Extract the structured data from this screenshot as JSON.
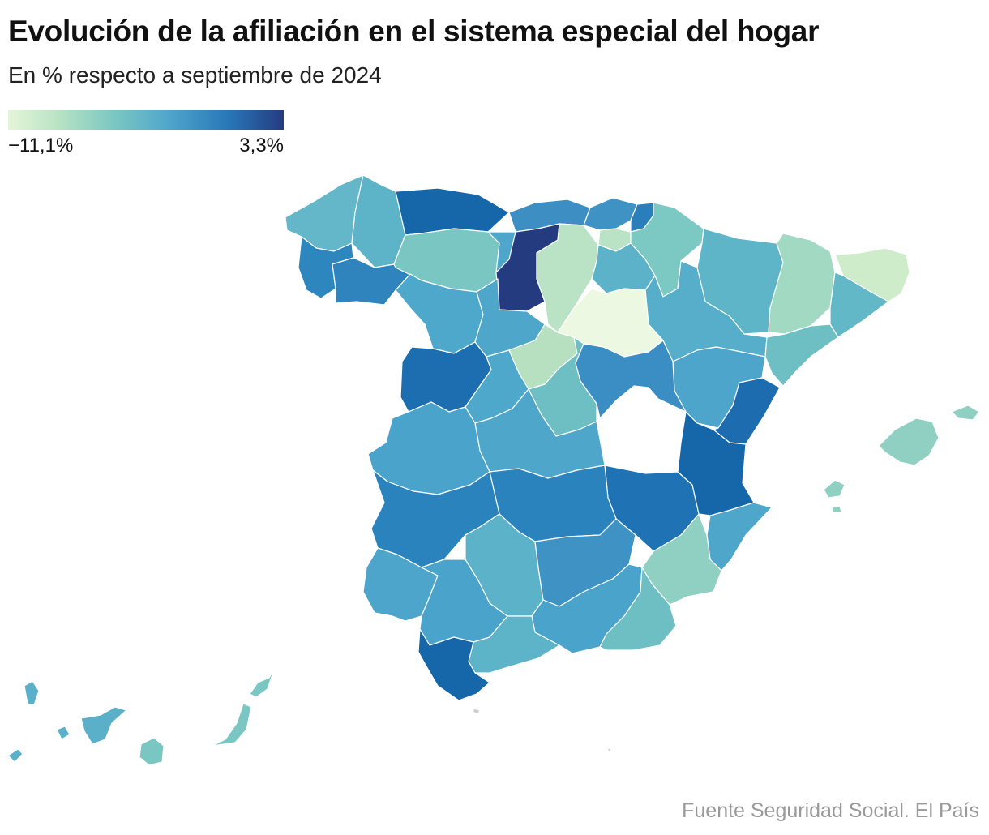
{
  "title": "Evolución de la afiliación en el sistema especial del hogar",
  "subtitle": "En % respecto a septiembre de 2024",
  "legend": {
    "min_label": "−11,1%",
    "max_label": "3,3%",
    "colors": [
      "#e6f5d8",
      "#b9e3c4",
      "#7cc8c2",
      "#4fa6cb",
      "#2877b8",
      "#253b80"
    ]
  },
  "source": "Fuente Seguridad Social. El País",
  "map": {
    "type": "choropleth",
    "region": "Spain provinces",
    "provinces": [
      {
        "id": "lugo",
        "color": "#5db4c8"
      },
      {
        "id": "a-coruna",
        "color": "#63b7c9"
      },
      {
        "id": "pontevedra",
        "color": "#2e86bf"
      },
      {
        "id": "ourense",
        "color": "#2f84be"
      },
      {
        "id": "asturias",
        "color": "#1666aa"
      },
      {
        "id": "leon",
        "color": "#79c6c3"
      },
      {
        "id": "zamora",
        "color": "#4da8cb"
      },
      {
        "id": "cantabria",
        "color": "#3d8fc3"
      },
      {
        "id": "burgos",
        "color": "#253b80"
      },
      {
        "id": "palencia",
        "color": "#4fa6cb"
      },
      {
        "id": "valladolid",
        "color": "#4fa6cb"
      },
      {
        "id": "salamanca",
        "color": "#1c6eb0"
      },
      {
        "id": "segovia",
        "color": "#b6e0c0"
      },
      {
        "id": "avila",
        "color": "#4da8cb"
      },
      {
        "id": "soria",
        "color": "#b9e3c4"
      },
      {
        "id": "bizkaia",
        "color": "#3f92c4"
      },
      {
        "id": "gipuzkoa",
        "color": "#2a7ebc"
      },
      {
        "id": "alava",
        "color": "#b9e3c4"
      },
      {
        "id": "la-rioja",
        "color": "#5cb2c8"
      },
      {
        "id": "navarra",
        "color": "#7cc8c2"
      },
      {
        "id": "huesca",
        "color": "#5fb5c8"
      },
      {
        "id": "zaragoza",
        "color": "#56aeca"
      },
      {
        "id": "teruel",
        "color": "#4da5cb"
      },
      {
        "id": "lleida",
        "color": "#a2d9c2"
      },
      {
        "id": "girona",
        "color": "#cfecca"
      },
      {
        "id": "barcelona",
        "color": "#62b8c6"
      },
      {
        "id": "tarragona",
        "color": "#6ebfc4"
      },
      {
        "id": "guadalajara",
        "color": "#edf8e2"
      },
      {
        "id": "madrid",
        "color": "#6ebfc4"
      },
      {
        "id": "cuenca",
        "color": "#3a8ec3"
      },
      {
        "id": "toledo",
        "color": "#4fa6cb"
      },
      {
        "id": "caceres",
        "color": "#4aa3ca"
      },
      {
        "id": "badajoz",
        "color": "#2a83bc"
      },
      {
        "id": "ciudad-real",
        "color": "#2a83bc"
      },
      {
        "id": "albacete",
        "color": "#1f73b4"
      },
      {
        "id": "castellon",
        "color": "#1d6cb0"
      },
      {
        "id": "valencia",
        "color": "#1666aa"
      },
      {
        "id": "alicante",
        "color": "#4fa6cb"
      },
      {
        "id": "murcia",
        "color": "#8fd0c2"
      },
      {
        "id": "huelva",
        "color": "#4da5cb"
      },
      {
        "id": "sevilla",
        "color": "#4aa3ca"
      },
      {
        "id": "cordoba",
        "color": "#5cb2c8"
      },
      {
        "id": "jaen",
        "color": "#3f93c4"
      },
      {
        "id": "granada",
        "color": "#4aa3ca"
      },
      {
        "id": "almeria",
        "color": "#6ebfc4"
      },
      {
        "id": "malaga",
        "color": "#5db4c8"
      },
      {
        "id": "cadiz",
        "color": "#1666aa"
      },
      {
        "id": "mallorca",
        "color": "#8fd0c2"
      },
      {
        "id": "ibiza",
        "color": "#8fd0c2"
      },
      {
        "id": "santa-cruz-de-tenerife",
        "color": "#5ab0c9"
      },
      {
        "id": "las-palmas",
        "color": "#79c6c3"
      }
    ]
  }
}
